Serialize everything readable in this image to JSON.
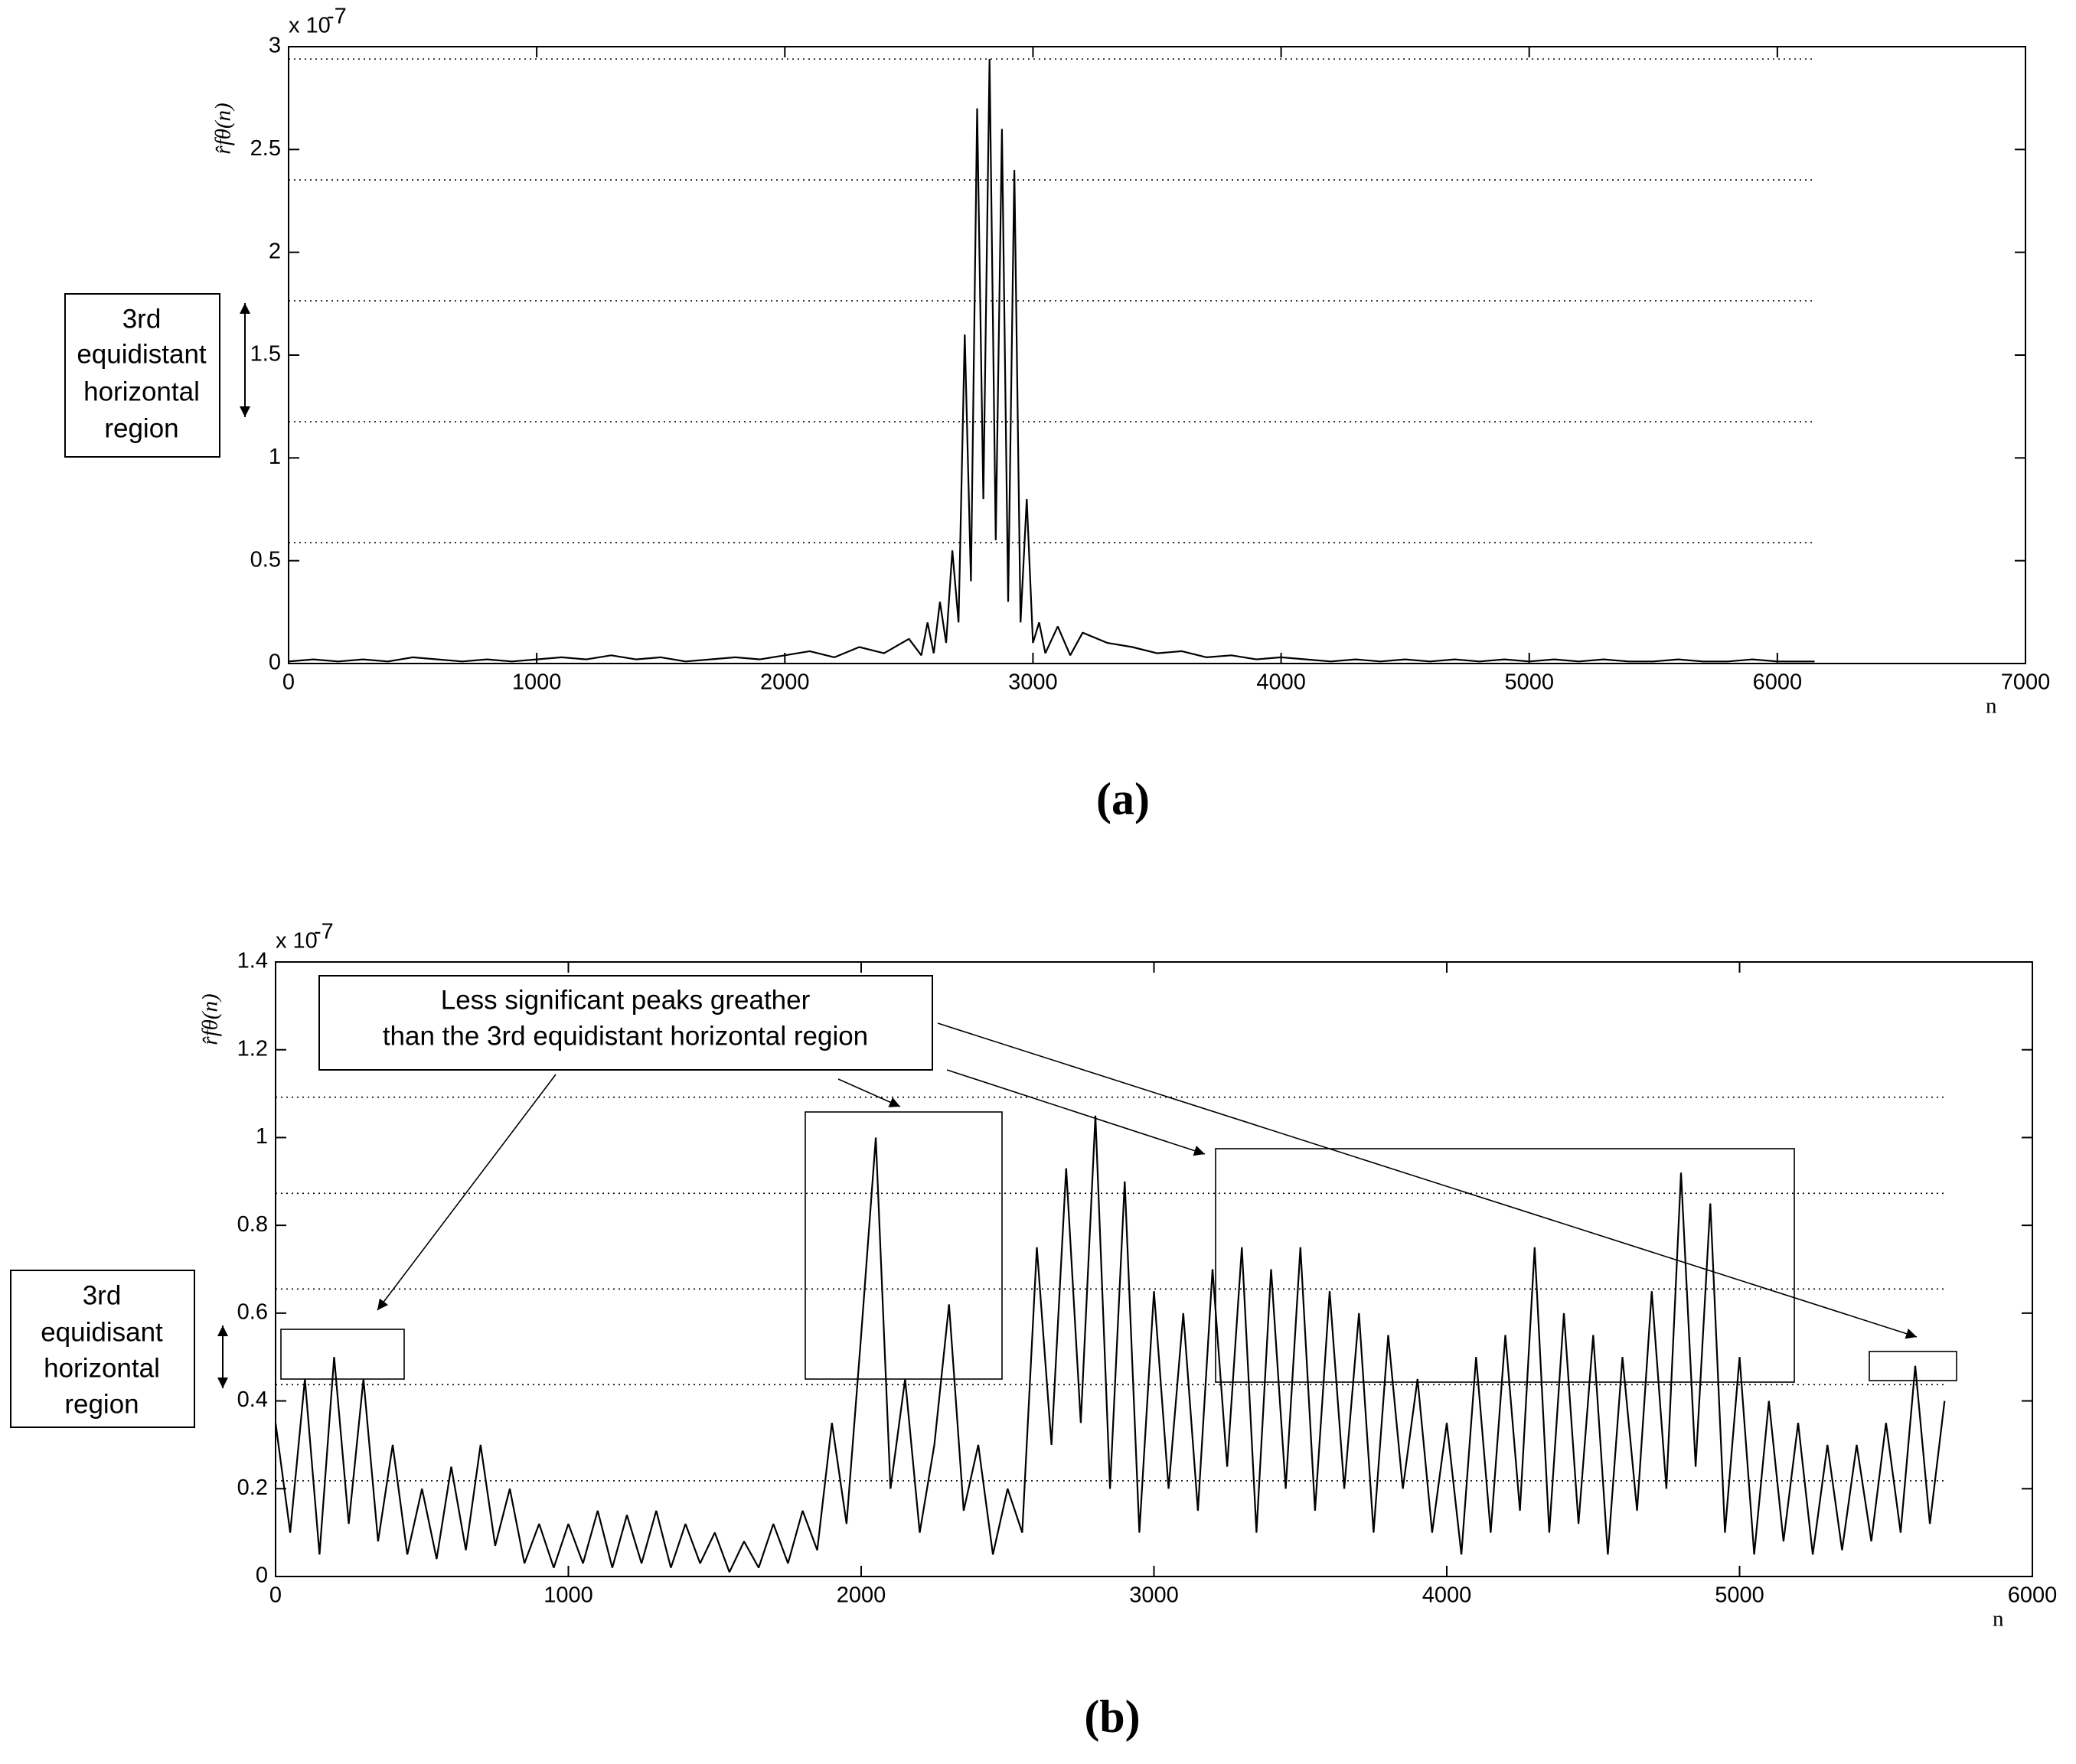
{
  "chart_data": [
    {
      "type": "line",
      "caption": "(a)",
      "xlabel": "n",
      "ylabel": "r̂fθ(n)",
      "exponent_base": "x 10",
      "exponent": "-7",
      "annotation_lines": [
        "3rd",
        "equidistant",
        "horizontal",
        "region"
      ],
      "xlim": [
        0,
        7000
      ],
      "ylim": [
        0,
        3
      ],
      "xticks": [
        0,
        1000,
        2000,
        3000,
        4000,
        5000,
        6000,
        7000
      ],
      "yticks": [
        0,
        0.5,
        1,
        1.5,
        2,
        2.5,
        3
      ],
      "threshold_lines": [
        0.588,
        1.176,
        1.764,
        2.352,
        2.94
      ],
      "series": [
        {
          "color": "#000000",
          "x": [
            0,
            100,
            200,
            300,
            400,
            500,
            600,
            700,
            800,
            900,
            1000,
            1100,
            1200,
            1300,
            1400,
            1500,
            1600,
            1700,
            1800,
            1900,
            2000,
            2100,
            2200,
            2300,
            2400,
            2500,
            2550,
            2575,
            2600,
            2625,
            2650,
            2675,
            2700,
            2725,
            2750,
            2775,
            2800,
            2825,
            2850,
            2875,
            2900,
            2925,
            2950,
            2975,
            3000,
            3025,
            3050,
            3100,
            3150,
            3200,
            3300,
            3400,
            3500,
            3600,
            3700,
            3800,
            3900,
            4000,
            4100,
            4200,
            4300,
            4400,
            4500,
            4600,
            4700,
            4800,
            4900,
            5000,
            5100,
            5200,
            5300,
            5400,
            5500,
            5600,
            5700,
            5800,
            5900,
            6000,
            6100,
            6150
          ],
          "values": [
            0.01,
            0.02,
            0.01,
            0.02,
            0.01,
            0.03,
            0.02,
            0.01,
            0.02,
            0.01,
            0.02,
            0.03,
            0.02,
            0.04,
            0.02,
            0.03,
            0.01,
            0.02,
            0.03,
            0.02,
            0.04,
            0.06,
            0.03,
            0.08,
            0.05,
            0.12,
            0.04,
            0.2,
            0.05,
            0.3,
            0.1,
            0.55,
            0.2,
            1.6,
            0.4,
            2.7,
            0.8,
            2.94,
            0.6,
            2.6,
            0.3,
            2.4,
            0.2,
            0.8,
            0.1,
            0.2,
            0.05,
            0.18,
            0.04,
            0.15,
            0.1,
            0.08,
            0.05,
            0.06,
            0.03,
            0.04,
            0.02,
            0.03,
            0.02,
            0.01,
            0.02,
            0.01,
            0.02,
            0.01,
            0.02,
            0.01,
            0.02,
            0.01,
            0.02,
            0.01,
            0.02,
            0.01,
            0.01,
            0.02,
            0.01,
            0.01,
            0.02,
            0.01,
            0.01,
            0.01
          ]
        }
      ]
    },
    {
      "type": "line",
      "caption": "(b)",
      "xlabel": "n",
      "ylabel": "r̂fθ(n)",
      "exponent_base": "x 10",
      "exponent": "-7",
      "annotation_lines": [
        "3rd",
        "equidisant",
        "horizontal",
        "region"
      ],
      "callout_lines": [
        "Less significant peaks greather",
        "than the 3rd equidistant horizontal region"
      ],
      "xlim": [
        0,
        6000
      ],
      "ylim": [
        0,
        1.4
      ],
      "xticks": [
        0,
        1000,
        2000,
        3000,
        4000,
        5000,
        6000
      ],
      "yticks": [
        0,
        0.2,
        0.4,
        0.6,
        0.8,
        1,
        1.2,
        1.4
      ],
      "threshold_lines": [
        0.218,
        0.437,
        0.655,
        0.873,
        1.092
      ],
      "series": [
        {
          "color": "#000000",
          "x": [
            0,
            50,
            100,
            150,
            200,
            250,
            300,
            350,
            400,
            450,
            500,
            550,
            600,
            650,
            700,
            750,
            800,
            850,
            900,
            950,
            1000,
            1050,
            1100,
            1150,
            1200,
            1250,
            1300,
            1350,
            1400,
            1450,
            1500,
            1550,
            1600,
            1650,
            1700,
            1750,
            1800,
            1850,
            1900,
            1950,
            2000,
            2050,
            2100,
            2150,
            2200,
            2250,
            2300,
            2350,
            2400,
            2450,
            2500,
            2550,
            2600,
            2650,
            2700,
            2750,
            2800,
            2850,
            2900,
            2950,
            3000,
            3050,
            3100,
            3150,
            3200,
            3250,
            3300,
            3350,
            3400,
            3450,
            3500,
            3550,
            3600,
            3650,
            3700,
            3750,
            3800,
            3850,
            3900,
            3950,
            4000,
            4050,
            4100,
            4150,
            4200,
            4250,
            4300,
            4350,
            4400,
            4450,
            4500,
            4550,
            4600,
            4650,
            4700,
            4750,
            4800,
            4850,
            4900,
            4950,
            5000,
            5050,
            5100,
            5150,
            5200,
            5250,
            5300,
            5350,
            5400,
            5450,
            5500,
            5550,
            5600,
            5650,
            5700
          ],
          "values": [
            0.35,
            0.1,
            0.45,
            0.05,
            0.5,
            0.12,
            0.45,
            0.08,
            0.3,
            0.05,
            0.2,
            0.04,
            0.25,
            0.06,
            0.3,
            0.07,
            0.2,
            0.03,
            0.12,
            0.02,
            0.12,
            0.03,
            0.15,
            0.02,
            0.14,
            0.03,
            0.15,
            0.02,
            0.12,
            0.03,
            0.1,
            0.01,
            0.08,
            0.02,
            0.12,
            0.03,
            0.15,
            0.06,
            0.35,
            0.12,
            0.55,
            1.0,
            0.2,
            0.45,
            0.1,
            0.3,
            0.62,
            0.15,
            0.3,
            0.05,
            0.2,
            0.1,
            0.75,
            0.3,
            0.93,
            0.35,
            1.05,
            0.2,
            0.9,
            0.1,
            0.65,
            0.2,
            0.6,
            0.15,
            0.7,
            0.25,
            0.75,
            0.1,
            0.7,
            0.2,
            0.75,
            0.15,
            0.65,
            0.2,
            0.6,
            0.1,
            0.55,
            0.2,
            0.45,
            0.1,
            0.35,
            0.05,
            0.5,
            0.1,
            0.55,
            0.15,
            0.75,
            0.1,
            0.6,
            0.12,
            0.55,
            0.05,
            0.5,
            0.15,
            0.65,
            0.2,
            0.92,
            0.25,
            0.85,
            0.1,
            0.5,
            0.05,
            0.4,
            0.08,
            0.35,
            0.05,
            0.3,
            0.06,
            0.3,
            0.08,
            0.35,
            0.1,
            0.48,
            0.12,
            0.4
          ]
        }
      ]
    }
  ]
}
